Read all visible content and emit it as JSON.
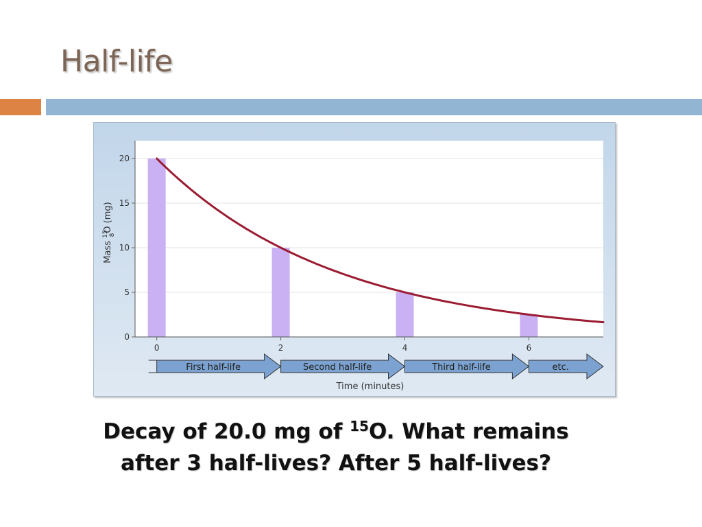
{
  "slide": {
    "title": "Half-life",
    "caption": {
      "part1": "Decay of 20.0 mg of ",
      "superscript": "15",
      "part2": "O. What remains",
      "line2": "after 3 half-lives? After 5 half-lives?"
    },
    "colors": {
      "title": "#7d6555",
      "accent_orange": "#dd8445",
      "accent_blue": "#93b5d4"
    }
  },
  "chart_data": {
    "type": "bar",
    "x": [
      0,
      2,
      4,
      6
    ],
    "values": [
      20,
      10,
      5,
      2.5
    ],
    "curve": {
      "type": "exponential-decay",
      "initial": 20,
      "half_life": 2,
      "x_range": [
        0,
        7.2
      ]
    },
    "xlabel": "Time (minutes)",
    "ylabel_parts": {
      "before": "Mass ",
      "mass_number": "15",
      "atomic_number": "8",
      "after": "O (mg)"
    },
    "xlim": [
      -0.35,
      7.2
    ],
    "ylim": [
      0,
      22
    ],
    "yticks": [
      0,
      5,
      10,
      15,
      20
    ],
    "xticks": [
      0,
      2,
      4,
      6
    ],
    "stages": [
      "First half-life",
      "Second half-life",
      "Third half-life",
      "etc."
    ],
    "colors": {
      "bars": "#c9b1f3",
      "curve": "#9b1c32",
      "arrows": "#7ba2d0"
    },
    "grid": true
  }
}
